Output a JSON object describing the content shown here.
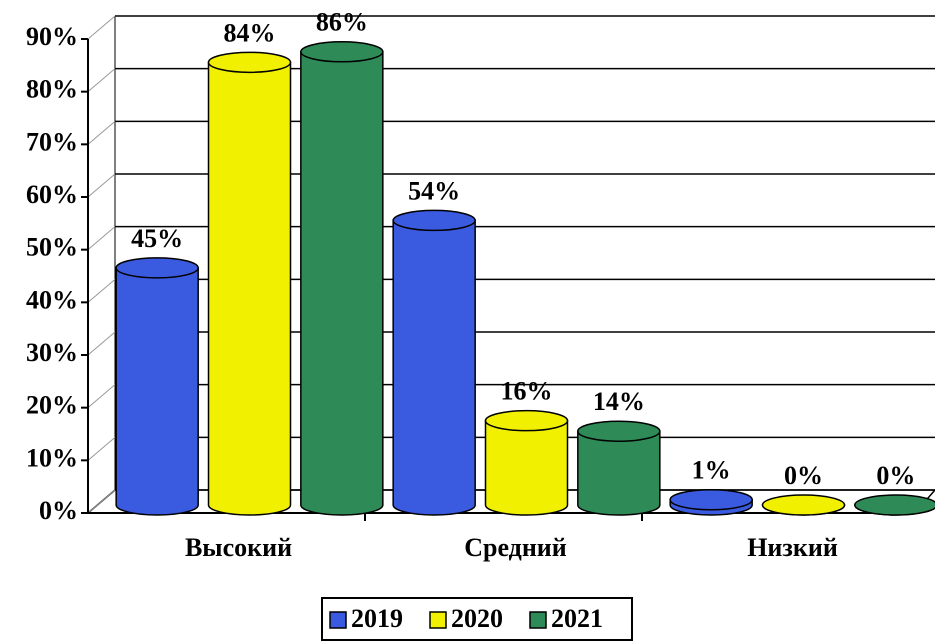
{
  "chart_data": {
    "type": "bar3d",
    "categories": [
      "Высокий",
      "Средний",
      "Низкий"
    ],
    "series": [
      {
        "name": "2019",
        "color": "#3a5be0",
        "values": [
          45,
          54,
          1
        ],
        "value_labels": [
          "45%",
          "54%",
          "1%"
        ]
      },
      {
        "name": "2020",
        "color": "#f0f000",
        "values": [
          84,
          16,
          0
        ],
        "value_labels": [
          "84%",
          "16%",
          "0%"
        ]
      },
      {
        "name": "2021",
        "color": "#2e8b57",
        "values": [
          86,
          14,
          0
        ],
        "value_labels": [
          "86%",
          "14%",
          "0%"
        ]
      }
    ],
    "ylim": [
      0,
      90
    ],
    "yticks": [
      {
        "value": 0,
        "label": "0%"
      },
      {
        "value": 10,
        "label": "10%"
      },
      {
        "value": 20,
        "label": "20%"
      },
      {
        "value": 30,
        "label": "30%"
      },
      {
        "value": 40,
        "label": "40%"
      },
      {
        "value": 50,
        "label": "50%"
      },
      {
        "value": 60,
        "label": "60%"
      },
      {
        "value": 70,
        "label": "70%"
      },
      {
        "value": 80,
        "label": "80%"
      },
      {
        "value": 90,
        "label": "90%"
      }
    ],
    "grid": true,
    "legend": "bottom"
  }
}
